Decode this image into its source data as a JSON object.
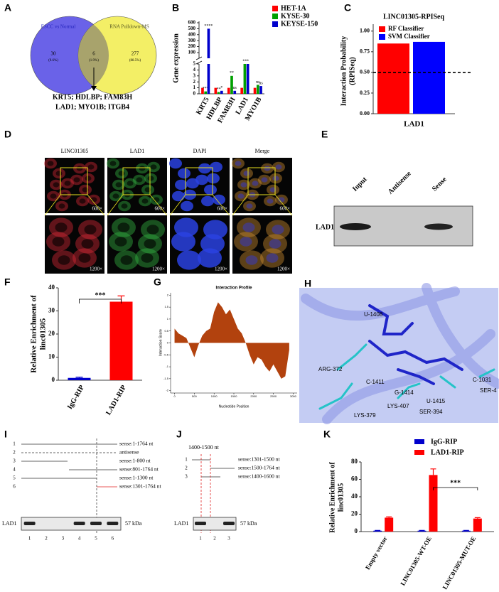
{
  "venn": {
    "panel": "A",
    "left_title": "ESCC vs Normal",
    "right_title": "RNA Pulldown-MS",
    "left_count": 30,
    "left_percent": "(9.6%)",
    "overlap_count": 6,
    "overlap_percent": "(1.9%)",
    "right_count": 277,
    "right_percent": "(88.5%)",
    "genes": [
      "KRT5; HDLBP; FAM83H",
      "LAD1; MYO1B; ITGB4"
    ]
  },
  "chart_data": [
    {
      "panel": "B",
      "type": "broken_bar",
      "ylabel": "Gene expression",
      "categories": [
        "KRT5",
        "HDLBP",
        "FAM83H",
        "LAD1",
        "MYO1B"
      ],
      "series": [
        {
          "name": "HET-1A",
          "color": "#ff0000",
          "values": [
            1,
            1,
            1,
            1,
            1
          ]
        },
        {
          "name": "KYSE-30",
          "color": "#00a000",
          "values": [
            0.4,
            0.3,
            3,
            5,
            1.5
          ],
          "significance": [
            "***",
            "**",
            "**",
            "**",
            "ns"
          ]
        },
        {
          "name": "KEYSE-150",
          "color": "#0000cc",
          "values": [
            500,
            0.5,
            0.5,
            5,
            1.3
          ],
          "significance": [
            "****",
            "*",
            "ns",
            "*",
            "ns"
          ]
        }
      ],
      "ylim_lower": [
        0,
        5
      ],
      "yticks_lower": [
        0,
        1,
        2,
        3,
        4,
        5
      ],
      "ylim_upper": [
        5,
        600
      ],
      "yticks_upper": [
        100,
        200,
        300,
        400,
        500,
        600
      ]
    },
    {
      "panel": "C",
      "type": "bar",
      "title": "LINC01305-RPISeq",
      "ylabel": [
        "Interaction Probability",
        "(RPISeq)"
      ],
      "categories": [
        "LAD1"
      ],
      "series": [
        {
          "name": "RF Classifier",
          "color": "#ff0000",
          "values": [
            0.85
          ]
        },
        {
          "name": "SVM Classifier",
          "color": "#0000ff",
          "values": [
            0.87
          ]
        }
      ],
      "threshold": 0.5,
      "ylim": [
        0,
        1.05
      ],
      "yticks": [
        {
          "value": 0,
          "label": "0.00"
        },
        0.25,
        {
          "value": 0.5,
          "label": "0.50"
        },
        0.75,
        {
          "value": 1,
          "label": "1.00"
        }
      ]
    },
    {
      "panel": "F",
      "type": "bar",
      "ylabel": [
        "Relative Enrichment of",
        "linc01305"
      ],
      "categories": [
        "IgG-RIP",
        "LAD1-RIP"
      ],
      "values": [
        1,
        34
      ],
      "errors": [
        0.3,
        2.5
      ],
      "colors": [
        "#0000cc",
        "#ff0000"
      ],
      "ylim": [
        0,
        40
      ],
      "yticks": [
        0,
        10,
        20,
        30,
        40
      ],
      "significance": "***"
    },
    {
      "panel": "G",
      "type": "area",
      "title": "Interaction Profile",
      "xlabel": "Nucleotide Position",
      "ylabel": "Interaction Score",
      "x": [
        0,
        100,
        200,
        300,
        400,
        500,
        600,
        700,
        800,
        900,
        1000,
        1100,
        1200,
        1300,
        1400,
        1500,
        1600,
        1700,
        1800,
        1900,
        2000,
        2100,
        2200,
        2300,
        2400,
        2500,
        2600,
        2700,
        2800,
        2900
      ],
      "values": [
        0.6,
        0.4,
        0.3,
        0.2,
        -0.2,
        -0.6,
        -0.1,
        0.3,
        0.5,
        0.6,
        1.3,
        1.7,
        1.5,
        1.2,
        1.4,
        1.0,
        0.6,
        0.4,
        0.0,
        -0.5,
        -0.9,
        -0.6,
        -0.7,
        -1.0,
        -1.2,
        -0.9,
        -1.2,
        -1.5,
        -1.4,
        -0.3
      ],
      "color": "#b2420e",
      "xlim": [
        -100,
        3100
      ],
      "xticks": [
        0,
        500,
        1000,
        1500,
        2000,
        2500,
        3000
      ],
      "ylim": [
        -2.1,
        2.1
      ],
      "yticks": [
        -2,
        -1.5,
        -1,
        -0.5,
        0,
        0.5,
        1,
        1.5,
        2
      ]
    },
    {
      "panel": "K",
      "type": "bar",
      "ylabel": [
        "Relative Enrichment of",
        "linc01305"
      ],
      "categories": [
        "Empty vector",
        "LINC01305-WT-OE",
        "LINC01305-MUT-OE"
      ],
      "series": [
        {
          "name": "IgG-RIP",
          "color": "#0000cc",
          "values": [
            1,
            1,
            1
          ],
          "errors": [
            0.3,
            0.3,
            0.3
          ]
        },
        {
          "name": "LAD1-RIP",
          "color": "#ff0000",
          "values": [
            16,
            65,
            15
          ],
          "errors": [
            1,
            7,
            1
          ]
        }
      ],
      "ylim": [
        0,
        80
      ],
      "yticks": [
        0,
        20,
        40,
        60,
        80
      ],
      "significance": "***"
    }
  ],
  "microscopy": {
    "panel": "D",
    "channels": [
      "LINC01305",
      "LAD1",
      "DAPI",
      "Merge"
    ],
    "magnifications": [
      "600×",
      "1200×"
    ]
  },
  "pulldown": {
    "panel": "E",
    "lanes": [
      "Input",
      "Antisense",
      "Sense"
    ],
    "protein": "LAD1"
  },
  "docking": {
    "panel": "H",
    "residues": [
      "U-1408",
      "ARG-372",
      "C-1411",
      "G-1414",
      "U-1415",
      "LYS-407",
      "SER-394",
      "LYS-379",
      "C-1031",
      "SER-4"
    ]
  },
  "mapping_I": {
    "panel": "I",
    "rows": [
      "1",
      "2",
      "3",
      "4",
      "5",
      "6"
    ],
    "fragments": [
      "sense:1-1764 nt",
      "antisense",
      "sense:1-800 nt",
      "sense:801-1764 nt",
      "sense:1-1300 nt",
      "sense:1301-1764 nt"
    ],
    "protein": "LAD1",
    "size": "57 kDa",
    "lanes": [
      "1",
      "2",
      "3",
      "4",
      "5",
      "6"
    ]
  },
  "mapping_J": {
    "panel": "J",
    "region": "1400-1500 nt",
    "rows": [
      "1",
      "2",
      "3"
    ],
    "fragments": [
      "sense:1301-1500 nt",
      "sense:1500-1764 nt",
      "sense:1400-1600 nt"
    ],
    "protein": "LAD1",
    "size": "57 kDa",
    "lanes": [
      "1",
      "2",
      "3"
    ]
  }
}
